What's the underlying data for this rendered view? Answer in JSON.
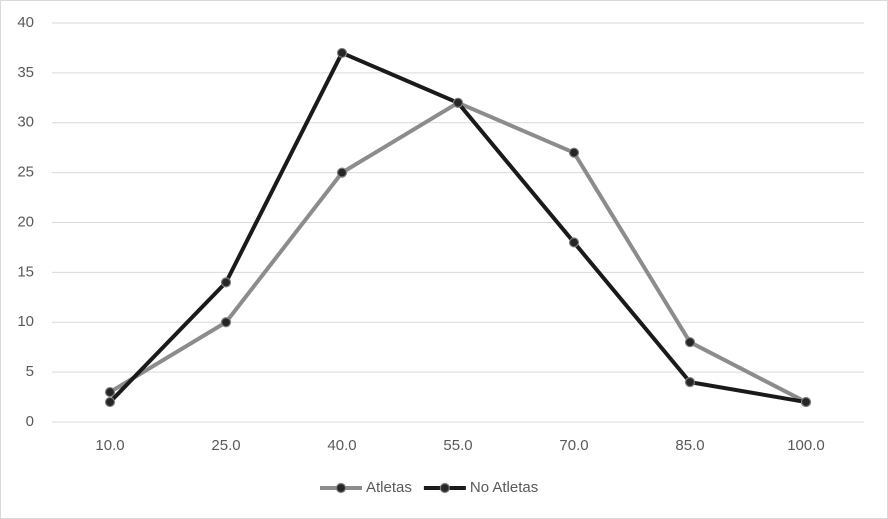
{
  "chart_data": {
    "type": "line",
    "categories": [
      "10.0",
      "25.0",
      "40.0",
      "55.0",
      "70.0",
      "85.0",
      "100.0"
    ],
    "series": [
      {
        "name": "Atletas",
        "color": "#8c8c8c",
        "values": [
          3,
          10,
          25,
          32,
          27,
          8,
          2
        ]
      },
      {
        "name": "No Atletas",
        "color": "#1a1a1a",
        "values": [
          2,
          14,
          37,
          32,
          18,
          4,
          2
        ]
      }
    ],
    "ylim": [
      0,
      40
    ],
    "yticks": [
      0,
      5,
      10,
      15,
      20,
      25,
      30,
      35,
      40
    ],
    "grid": true,
    "legend": "bottom"
  }
}
